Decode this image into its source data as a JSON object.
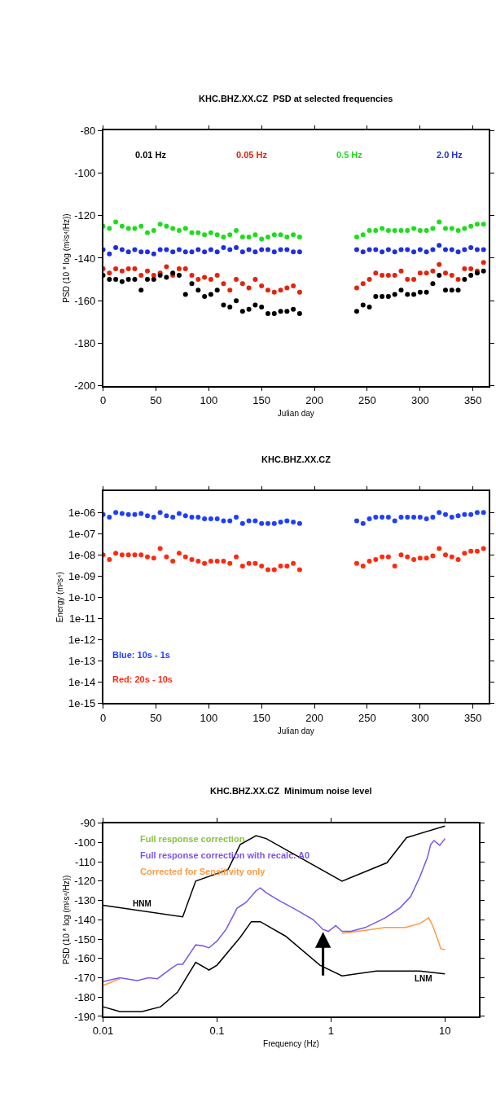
{
  "chart_data": [
    {
      "type": "scatter",
      "title": "KHC.BHZ.XX.CZ  PSD at selected frequencies",
      "xlabel": "Julian day",
      "ylabel": "PSD (10 * log (m²s⁴/Hz))",
      "x": [
        0,
        6,
        12,
        18,
        24,
        30,
        36,
        42,
        48,
        54,
        60,
        66,
        72,
        78,
        84,
        90,
        96,
        102,
        108,
        114,
        120,
        126,
        132,
        138,
        144,
        150,
        156,
        162,
        168,
        174,
        180,
        186,
        240,
        246,
        252,
        258,
        264,
        270,
        276,
        282,
        288,
        294,
        300,
        306,
        312,
        318,
        324,
        330,
        336,
        342,
        348,
        354,
        360
      ],
      "series": [
        {
          "name": "0.01 Hz",
          "color": "#000000",
          "values": [
            -148,
            -150,
            -150,
            -151,
            -150,
            -150,
            -155,
            -150,
            -150,
            -148,
            -149,
            -147,
            -148,
            -157,
            -152,
            -155,
            -158,
            -157,
            -155,
            -162,
            -163,
            -160,
            -165,
            -164,
            -162,
            -163,
            -166,
            -166,
            -165,
            -165,
            -164,
            -166,
            -165,
            -162,
            -163,
            -158,
            -158,
            -158,
            -157,
            -155,
            -157,
            -157,
            -156,
            -156,
            -152,
            -148,
            -155,
            -155,
            -155,
            -150,
            -148,
            -147,
            -146
          ]
        },
        {
          "name": "0.05 Hz",
          "color": "#e3240c",
          "values": [
            -145,
            -147,
            -145,
            -146,
            -145,
            -145,
            -148,
            -146,
            -148,
            -147,
            -144,
            -148,
            -145,
            -145,
            -148,
            -150,
            -149,
            -150,
            -148,
            -152,
            -155,
            -150,
            -152,
            -154,
            -150,
            -153,
            -155,
            -156,
            -155,
            -154,
            -153,
            -156,
            -154,
            -152,
            -150,
            -147,
            -148,
            -148,
            -148,
            -146,
            -150,
            -150,
            -147,
            -147,
            -146,
            -143,
            -147,
            -148,
            -150,
            -145,
            -145,
            -146,
            -142
          ]
        },
        {
          "name": "0.5 Hz",
          "color": "#1fdc1f",
          "values": [
            -125,
            -126,
            -123,
            -125,
            -126,
            -126,
            -125,
            -128,
            -127,
            -124,
            -125,
            -126,
            -127,
            -126,
            -128,
            -128,
            -129,
            -128,
            -129,
            -130,
            -129,
            -127,
            -130,
            -130,
            -129,
            -131,
            -130,
            -129,
            -129,
            -130,
            -129,
            -130,
            -130,
            -129,
            -127,
            -127,
            -126,
            -127,
            -127,
            -127,
            -127,
            -126,
            -127,
            -127,
            -126,
            -123,
            -126,
            -126,
            -127,
            -126,
            -125,
            -124,
            -124
          ]
        },
        {
          "name": "2.0 Hz",
          "color": "#1f2fe0",
          "values": [
            -136,
            -138,
            -135,
            -136,
            -137,
            -136,
            -137,
            -137,
            -138,
            -136,
            -136,
            -137,
            -136,
            -137,
            -137,
            -136,
            -137,
            -136,
            -137,
            -135,
            -136,
            -135,
            -137,
            -136,
            -137,
            -136,
            -136,
            -137,
            -136,
            -136,
            -137,
            -137,
            -136,
            -137,
            -136,
            -136,
            -137,
            -136,
            -137,
            -136,
            -136,
            -137,
            -136,
            -137,
            -136,
            -134,
            -136,
            -136,
            -137,
            -136,
            -135,
            -136,
            -136
          ]
        }
      ],
      "xlim": [
        0,
        365
      ],
      "xticks": [
        0,
        50,
        100,
        150,
        200,
        250,
        300,
        350
      ],
      "ylim": [
        -200,
        -80
      ],
      "yticks": [
        -200,
        -180,
        -160,
        -140,
        -120,
        -100,
        -80
      ],
      "grid": false,
      "marker": "circle"
    },
    {
      "type": "scatter",
      "title": "KHC.BHZ.XX.CZ",
      "xlabel": "Julian day",
      "ylabel": "Energy (m²s⁴)",
      "x": [
        0,
        6,
        12,
        18,
        24,
        30,
        36,
        42,
        48,
        54,
        60,
        66,
        72,
        78,
        84,
        90,
        96,
        102,
        108,
        114,
        120,
        126,
        132,
        138,
        144,
        150,
        156,
        162,
        168,
        174,
        180,
        186,
        240,
        246,
        252,
        258,
        264,
        270,
        276,
        282,
        288,
        294,
        300,
        306,
        312,
        318,
        324,
        330,
        336,
        342,
        348,
        354,
        360
      ],
      "series": [
        {
          "name": "Blue: 10s - 1s",
          "color": "#1f3fff",
          "values": [
            8e-07,
            6e-07,
            1e-06,
            9e-07,
            8e-07,
            8e-07,
            9e-07,
            7e-07,
            6e-07,
            1e-06,
            7e-07,
            6e-07,
            9e-07,
            7e-07,
            6e-07,
            6e-07,
            5e-07,
            5e-07,
            5e-07,
            4e-07,
            4e-07,
            6e-07,
            3e-07,
            4e-07,
            4e-07,
            3e-07,
            3e-07,
            3e-07,
            3.5e-07,
            4e-07,
            3.5e-07,
            3e-07,
            4e-07,
            3e-07,
            5e-07,
            6e-07,
            6e-07,
            6e-07,
            4e-07,
            6e-07,
            6e-07,
            6e-07,
            6e-07,
            5e-07,
            6e-07,
            1e-06,
            8e-07,
            6e-07,
            7e-07,
            8e-07,
            8e-07,
            1e-06,
            1e-06
          ]
        },
        {
          "name": "Red: 20s - 10s",
          "color": "#ff2a10",
          "values": [
            1e-08,
            6e-09,
            1.2e-08,
            1e-08,
            1e-08,
            1e-08,
            1e-08,
            8e-09,
            7e-09,
            2e-08,
            8e-09,
            5e-09,
            1.2e-08,
            8e-09,
            6e-09,
            5e-09,
            4e-09,
            5e-09,
            5e-09,
            5e-09,
            4e-09,
            8e-09,
            3e-09,
            4e-09,
            4e-09,
            3e-09,
            2e-09,
            2e-09,
            3e-09,
            3e-09,
            4e-09,
            2e-09,
            4e-09,
            3e-09,
            5e-09,
            6e-09,
            8e-09,
            8e-09,
            3e-09,
            1e-08,
            8e-09,
            6e-09,
            7e-09,
            7e-09,
            9e-09,
            2e-08,
            1e-08,
            8e-09,
            6e-09,
            1.2e-08,
            1.5e-08,
            1.5e-08,
            2e-08
          ]
        }
      ],
      "xlim": [
        0,
        365
      ],
      "xticks": [
        0,
        50,
        100,
        150,
        200,
        250,
        300,
        350
      ],
      "log": "y",
      "ylim": [
        1e-15,
        1e-05
      ],
      "yticks": [
        {
          "value": 1e-15,
          "label": "1e-15"
        },
        {
          "value": 1e-14,
          "label": "1e-14"
        },
        {
          "value": 1e-13,
          "label": "1e-13"
        },
        {
          "value": 1e-12,
          "label": "1e-12"
        },
        {
          "value": 1e-11,
          "label": "1e-11"
        },
        {
          "value": 1e-10,
          "label": "1e-10"
        },
        {
          "value": 1e-09,
          "label": "1e-09"
        },
        {
          "value": 1e-08,
          "label": "1e-08"
        },
        {
          "value": 1e-07,
          "label": "1e-07"
        },
        {
          "value": 1e-06,
          "label": "1e-06"
        }
      ],
      "grid": false,
      "marker": "circle"
    },
    {
      "type": "line",
      "title": "KHC.BHZ.XX.CZ  Minimum noise level",
      "xlabel": "Frequency (Hz)",
      "ylabel": "PSD (10 * log (m²s⁴/Hz))",
      "log": "x",
      "xlim": [
        0.01,
        20
      ],
      "xticks": [
        0.01,
        0.1,
        1,
        10
      ],
      "ylim": [
        -190,
        -90
      ],
      "yticks": [
        -190,
        -180,
        -170,
        -160,
        -150,
        -140,
        -130,
        -120,
        -110,
        -100,
        -90
      ],
      "series": [
        {
          "name": "Full response correction",
          "color": "#86c440"
        },
        {
          "name": "Full response correction with recalc. A0",
          "color": "#7a55e8",
          "x": [
            0.01,
            0.014,
            0.02,
            0.025,
            0.03,
            0.04,
            0.045,
            0.05,
            0.065,
            0.075,
            0.085,
            0.1,
            0.12,
            0.15,
            0.18,
            0.22,
            0.24,
            0.27,
            0.35,
            0.5,
            0.7,
            0.85,
            0.95,
            1.1,
            1.25,
            1.5,
            2,
            3,
            4,
            5,
            6,
            7,
            7.5,
            8,
            9,
            10
          ],
          "values": [
            -172,
            -170,
            -171.5,
            -170,
            -170.5,
            -165,
            -163,
            -163,
            -153,
            -153.5,
            -154.5,
            -151,
            -145,
            -134,
            -131,
            -125,
            -123.5,
            -126,
            -130,
            -135,
            -140,
            -145,
            -146,
            -143,
            -146,
            -146,
            -144,
            -139,
            -134,
            -128,
            -118,
            -108,
            -101,
            -99,
            -101.5,
            -98
          ]
        },
        {
          "name": "Corrected for Sensitivity only",
          "color": "#ff9a40",
          "x": [
            0.01,
            0.014,
            0.02,
            1.25,
            2,
            3,
            4.5,
            6,
            7.2,
            7.8,
            8.5,
            9.2,
            10
          ],
          "values": [
            -174,
            -170.5,
            null,
            -147,
            -145.5,
            -144,
            -144,
            -142,
            -139,
            -143,
            -149,
            -155,
            -155.5
          ]
        },
        {
          "color": "#000000",
          "x": [
            0.01,
            0.05,
            0.065,
            0.125,
            0.16,
            0.22,
            0.27,
            1.25,
            3.1,
            4.6,
            10
          ],
          "values": [
            -132.5,
            -138.5,
            -120,
            -114,
            -101,
            -96.5,
            -98,
            -120,
            -110.5,
            -97.5,
            -91.5
          ]
        },
        {
          "color": "#000000",
          "x": [
            0.01,
            0.014,
            0.022,
            0.032,
            0.045,
            0.065,
            0.085,
            0.1,
            0.16,
            0.2,
            0.24,
            0.4,
            0.8,
            1.25,
            2.5,
            6,
            10
          ],
          "values": [
            -185,
            -187.5,
            -187.5,
            -185,
            -177.5,
            -162,
            -166,
            -163.5,
            -149,
            -141,
            -141,
            -148.5,
            -163.5,
            -169,
            -166.5,
            -166.5,
            -168
          ]
        }
      ],
      "annotations": [
        {
          "text": "HNM",
          "x": 0.022,
          "y": -135.4
        },
        {
          "text": "LNM",
          "x": 6.5,
          "y": -166.5
        }
      ],
      "grid": false,
      "marker": "none",
      "line_style": "solid"
    }
  ]
}
